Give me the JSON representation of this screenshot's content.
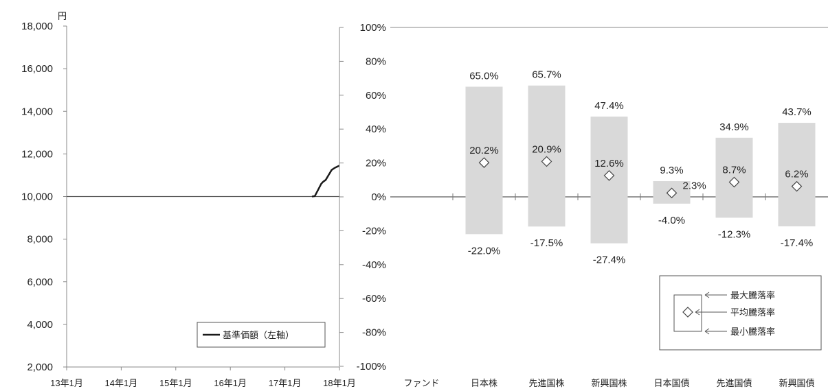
{
  "chart_data": [
    {
      "type": "line",
      "y_unit": "円",
      "ylim": [
        2000,
        18000
      ],
      "y_ticks": [
        "2,000",
        "4,000",
        "6,000",
        "8,000",
        "10,000",
        "12,000",
        "14,000",
        "16,000",
        "18,000"
      ],
      "x_ticks": [
        "13年1月",
        "14年1月",
        "15年1月",
        "16年1月",
        "17年1月",
        "18年1月"
      ],
      "x_range": [
        "2013-01",
        "2018-01"
      ],
      "series": [
        {
          "name": "基準価額（左軸）",
          "color": "#1a1a1a",
          "points": [
            [
              "2017-07-01",
              10000
            ],
            [
              "2017-07-20",
              10020
            ],
            [
              "2017-08-10",
              10300
            ],
            [
              "2017-09-01",
              10600
            ],
            [
              "2017-09-15",
              10700
            ],
            [
              "2017-10-01",
              10780
            ],
            [
              "2017-10-20",
              11000
            ],
            [
              "2017-11-10",
              11250
            ],
            [
              "2017-12-01",
              11350
            ],
            [
              "2017-12-31",
              11450
            ]
          ]
        }
      ],
      "legend": {
        "position": "bottom-right",
        "label": "基準価額（左軸）"
      }
    },
    {
      "type": "range_bar",
      "ylim": [
        -100,
        100
      ],
      "y_ticks": [
        "100%",
        "80%",
        "60%",
        "40%",
        "20%",
        "0%",
        "-20%",
        "-40%",
        "-60%",
        "-80%",
        "-100%"
      ],
      "categories": [
        "ファンド",
        "日本株",
        "先進国株",
        "新興国株",
        "日本国債",
        "先進国債",
        "新興国債"
      ],
      "max": [
        null,
        65.0,
        65.7,
        47.4,
        9.3,
        34.9,
        43.7
      ],
      "avg": [
        null,
        20.2,
        20.9,
        12.6,
        2.3,
        8.7,
        6.2
      ],
      "min": [
        null,
        -22.0,
        -17.5,
        -27.4,
        -4.0,
        -12.3,
        -17.4
      ],
      "max_labels": [
        "",
        "65.0%",
        "65.7%",
        "47.4%",
        "9.3%",
        "34.9%",
        "43.7%"
      ],
      "avg_labels": [
        "",
        "20.2%",
        "20.9%",
        "12.6%",
        "2.3%",
        "8.7%",
        "6.2%"
      ],
      "min_labels": [
        "",
        "-22.0%",
        "-17.5%",
        "-27.4%",
        "-4.0%",
        "-12.3%",
        "-17.4%"
      ],
      "bar_color": "#d9d9d9",
      "legend": {
        "position": "bottom-right",
        "max_label": "最大騰落率",
        "avg_label": "平均騰落率",
        "min_label": "最小騰落率"
      }
    }
  ]
}
